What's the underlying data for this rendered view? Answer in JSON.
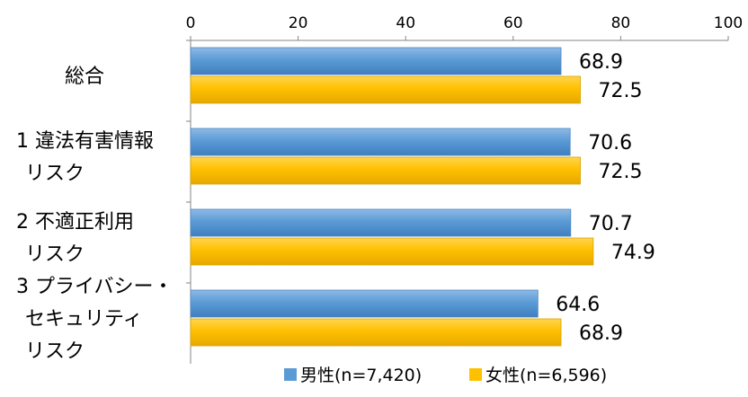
{
  "chart_data": {
    "type": "bar",
    "orientation": "horizontal",
    "title": "",
    "xlabel": "",
    "ylabel": "",
    "xlim": [
      0,
      100
    ],
    "x_ticks": [
      0,
      20,
      40,
      60,
      80,
      100
    ],
    "x_axis_position": "top",
    "grid": false,
    "legend_position": "bottom",
    "categories": [
      [
        "総合"
      ],
      [
        "1 違法有害情報",
        "リスク"
      ],
      [
        "2 不適正利用",
        "リスク"
      ],
      [
        "3 プライバシー・",
        "セキュリティ",
        "リスク"
      ]
    ],
    "series": [
      {
        "name": "男性(n=7,420)",
        "color": "#5b9bd5",
        "values": [
          68.9,
          70.6,
          70.7,
          64.6
        ]
      },
      {
        "name": "女性(n=6,596)",
        "color": "#ffc000",
        "values": [
          72.5,
          72.5,
          74.9,
          68.9
        ]
      }
    ]
  }
}
